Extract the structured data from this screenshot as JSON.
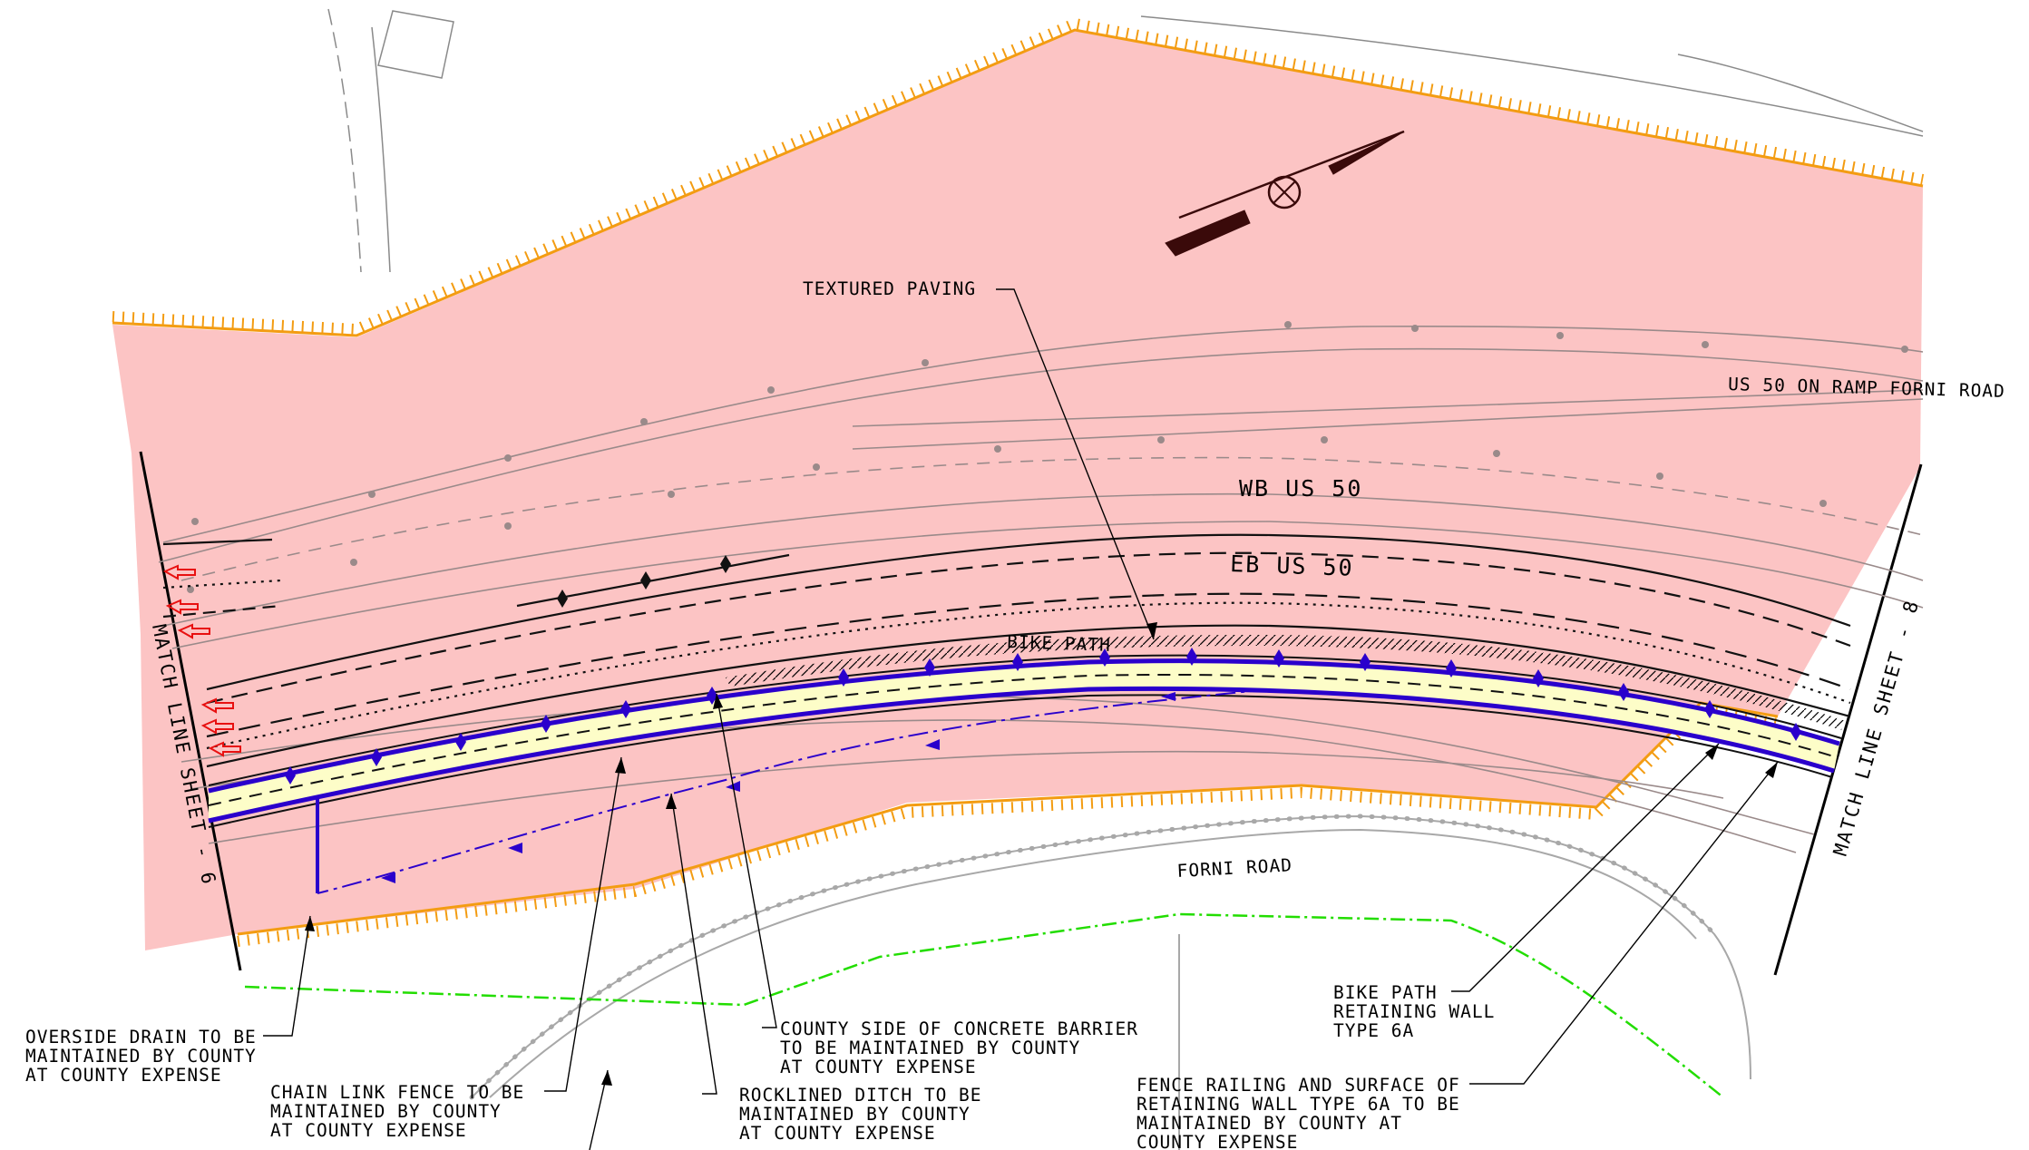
{
  "labels": {
    "textured_paving": "TEXTURED PAVING",
    "us50_on_ramp": "US 50 ON RAMP FORNI ROAD",
    "wb_us50": "WB US 50",
    "eb_us50": "EB US 50",
    "bike_path": "BIKE PATH",
    "forni_road": "FORNI ROAD",
    "match_line_left": "MATCH LINE SHEET - 6",
    "match_line_right": "MATCH LINE SHEET - 8"
  },
  "callouts": {
    "overside_drain": [
      "OVERSIDE DRAIN TO BE",
      "MAINTAINED BY COUNTY",
      "AT COUNTY EXPENSE"
    ],
    "chain_link_fence": [
      "CHAIN LINK FENCE TO BE",
      "MAINTAINED BY COUNTY",
      "AT COUNTY EXPENSE"
    ],
    "county_barrier": [
      "COUNTY SIDE OF CONCRETE BARRIER",
      "TO BE MAINTAINED BY COUNTY",
      "AT COUNTY EXPENSE"
    ],
    "rocklined_ditch": [
      "ROCKLINED DITCH TO BE",
      "MAINTAINED BY COUNTY",
      "AT COUNTY EXPENSE"
    ],
    "retaining_wall": [
      "BIKE PATH",
      "RETAINING WALL",
      "TYPE 6A"
    ],
    "fence_railing": [
      "FENCE RAILING AND SURFACE OF",
      "RETAINING WALL TYPE 6A TO BE",
      "MAINTAINED BY COUNTY AT",
      "COUNTY EXPENSE"
    ]
  },
  "colors": {
    "right_of_way_fill": "#fcc4c4",
    "right_of_way_edge": "#f39c12",
    "bike_path_fill": "#fdfdc8",
    "barrier": "#2a00cc",
    "green_line": "#22dd00",
    "red_arrows": "#e81010"
  }
}
